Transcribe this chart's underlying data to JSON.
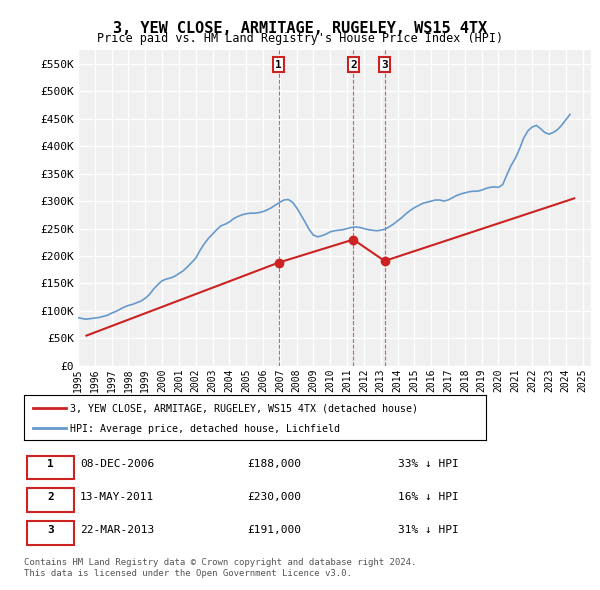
{
  "title": "3, YEW CLOSE, ARMITAGE, RUGELEY, WS15 4TX",
  "subtitle": "Price paid vs. HM Land Registry's House Price Index (HPI)",
  "xlabel": "",
  "ylabel": "",
  "ylim": [
    0,
    575000
  ],
  "yticks": [
    0,
    50000,
    100000,
    150000,
    200000,
    250000,
    300000,
    350000,
    400000,
    450000,
    500000,
    550000
  ],
  "ytick_labels": [
    "£0",
    "£50K",
    "£100K",
    "£150K",
    "£200K",
    "£250K",
    "£300K",
    "£350K",
    "£400K",
    "£450K",
    "£500K",
    "£550K"
  ],
  "xlim_start": 1995.0,
  "xlim_end": 2025.5,
  "background_color": "#ffffff",
  "plot_bg_color": "#f0f0f0",
  "grid_color": "#ffffff",
  "hpi_color": "#6699cc",
  "price_color": "#cc2222",
  "sale_dates_decimal": [
    2006.93,
    2011.37,
    2013.23
  ],
  "sale_prices": [
    188000,
    230000,
    191000
  ],
  "sale_labels": [
    "1",
    "2",
    "3"
  ],
  "sale_date_strs": [
    "08-DEC-2006",
    "13-MAY-2011",
    "22-MAR-2013"
  ],
  "sale_price_strs": [
    "£188,000",
    "£230,000",
    "£191,000"
  ],
  "sale_pct_strs": [
    "33% ↓ HPI",
    "16% ↓ HPI",
    "31% ↓ HPI"
  ],
  "legend_property": "3, YEW CLOSE, ARMITAGE, RUGELEY, WS15 4TX (detached house)",
  "legend_hpi": "HPI: Average price, detached house, Lichfield",
  "footer_line1": "Contains HM Land Registry data © Crown copyright and database right 2024.",
  "footer_line2": "This data is licensed under the Open Government Licence v3.0.",
  "hpi_data_x": [
    1995.0,
    1995.25,
    1995.5,
    1995.75,
    1996.0,
    1996.25,
    1996.5,
    1996.75,
    1997.0,
    1997.25,
    1997.5,
    1997.75,
    1998.0,
    1998.25,
    1998.5,
    1998.75,
    1999.0,
    1999.25,
    1999.5,
    1999.75,
    2000.0,
    2000.25,
    2000.5,
    2000.75,
    2001.0,
    2001.25,
    2001.5,
    2001.75,
    2002.0,
    2002.25,
    2002.5,
    2002.75,
    2003.0,
    2003.25,
    2003.5,
    2003.75,
    2004.0,
    2004.25,
    2004.5,
    2004.75,
    2005.0,
    2005.25,
    2005.5,
    2005.75,
    2006.0,
    2006.25,
    2006.5,
    2006.75,
    2007.0,
    2007.25,
    2007.5,
    2007.75,
    2008.0,
    2008.25,
    2008.5,
    2008.75,
    2009.0,
    2009.25,
    2009.5,
    2009.75,
    2010.0,
    2010.25,
    2010.5,
    2010.75,
    2011.0,
    2011.25,
    2011.5,
    2011.75,
    2012.0,
    2012.25,
    2012.5,
    2012.75,
    2013.0,
    2013.25,
    2013.5,
    2013.75,
    2014.0,
    2014.25,
    2014.5,
    2014.75,
    2015.0,
    2015.25,
    2015.5,
    2015.75,
    2016.0,
    2016.25,
    2016.5,
    2016.75,
    2017.0,
    2017.25,
    2017.5,
    2017.75,
    2018.0,
    2018.25,
    2018.5,
    2018.75,
    2019.0,
    2019.25,
    2019.5,
    2019.75,
    2020.0,
    2020.25,
    2020.5,
    2020.75,
    2021.0,
    2021.25,
    2021.5,
    2021.75,
    2022.0,
    2022.25,
    2022.5,
    2022.75,
    2023.0,
    2023.25,
    2023.5,
    2023.75,
    2024.0,
    2024.25
  ],
  "hpi_data_y": [
    88000,
    86000,
    85000,
    86000,
    87000,
    88000,
    90000,
    92000,
    96000,
    99000,
    103000,
    107000,
    110000,
    112000,
    115000,
    118000,
    123000,
    130000,
    140000,
    148000,
    155000,
    158000,
    160000,
    163000,
    168000,
    173000,
    180000,
    188000,
    196000,
    210000,
    222000,
    232000,
    240000,
    248000,
    255000,
    258000,
    262000,
    268000,
    272000,
    275000,
    277000,
    278000,
    278000,
    279000,
    281000,
    284000,
    288000,
    293000,
    298000,
    302000,
    303000,
    298000,
    288000,
    275000,
    262000,
    248000,
    238000,
    235000,
    237000,
    240000,
    244000,
    246000,
    247000,
    248000,
    250000,
    252000,
    253000,
    252000,
    250000,
    248000,
    247000,
    246000,
    247000,
    249000,
    253000,
    258000,
    264000,
    270000,
    277000,
    283000,
    288000,
    292000,
    296000,
    298000,
    300000,
    302000,
    302000,
    300000,
    302000,
    306000,
    310000,
    313000,
    315000,
    317000,
    318000,
    318000,
    320000,
    323000,
    325000,
    326000,
    325000,
    330000,
    348000,
    365000,
    378000,
    395000,
    415000,
    428000,
    435000,
    438000,
    432000,
    425000,
    422000,
    425000,
    430000,
    438000,
    448000,
    458000
  ],
  "price_data_x": [
    1995.5,
    2006.93,
    2011.37,
    2013.23,
    2024.5
  ],
  "price_data_y": [
    55000,
    188000,
    230000,
    191000,
    305000
  ]
}
